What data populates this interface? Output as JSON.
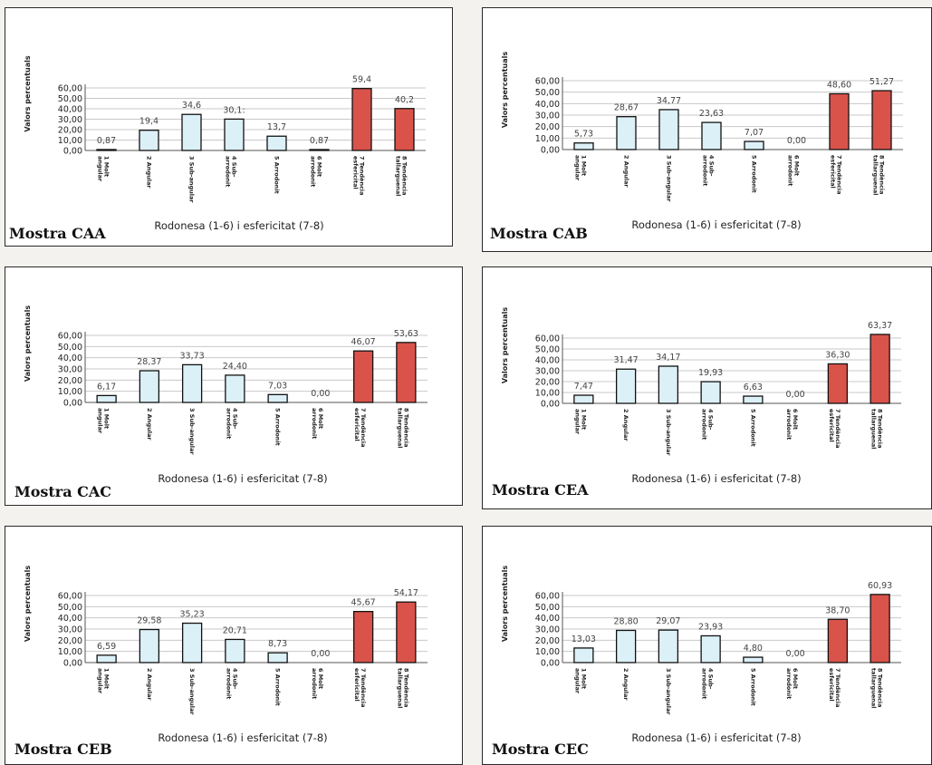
{
  "colors": {
    "roundness_fill": "#dcf0f8",
    "sphericity_fill": "#d9534a",
    "bar_stroke": "#111111",
    "grid": "#c8c8c8",
    "page_bg": "#f4f2ef",
    "panel_bg": "#ffffff"
  },
  "chart_data": [
    {
      "type": "bar",
      "sample": "Mostra CAA",
      "ylabel": "Valors percentuals",
      "xlabel": "Rodonesa (1-6) i esfericitat (7-8)",
      "ylim": [
        0,
        60
      ],
      "yticks": [
        "0,00",
        "10,00",
        "20,00",
        "30,00",
        "40,00",
        "50,00",
        "60,00"
      ],
      "categories": [
        [
          "1 Molt",
          "angular"
        ],
        [
          "2 Angular"
        ],
        [
          "3 Sub-angular"
        ],
        [
          "4 Sub-",
          "arrodonit"
        ],
        [
          "5 Arrodonit"
        ],
        [
          "6 Molt",
          "arrodonit"
        ],
        [
          "7 Tendència",
          "esfericital"
        ],
        [
          "8 Tendència",
          "tallarguenal"
        ]
      ],
      "values": [
        0.87,
        19.4,
        34.6,
        30.1,
        13.7,
        0.87,
        59.4,
        40.2
      ],
      "value_labels": [
        "0,87",
        "19,4",
        "34,6",
        "30,1:",
        "13,7",
        "0,87",
        "59,4",
        "40,2"
      ],
      "grid": true
    },
    {
      "type": "bar",
      "sample": "Mostra CAB",
      "ylabel": "Valors percentuals",
      "xlabel": "Rodonesa (1-6) i esfericitat (7-8)",
      "ylim": [
        0,
        60
      ],
      "yticks": [
        "0,00",
        "10,00",
        "20,00",
        "30,00",
        "40,00",
        "50,00",
        "60,00"
      ],
      "categories": [
        [
          "1 Molt",
          "angular"
        ],
        [
          "2 Angular"
        ],
        [
          "3 Sub-angular"
        ],
        [
          "4 Sub-",
          "arrodonit"
        ],
        [
          "5 Arrodonit"
        ],
        [
          "6 Molt",
          "arrodonit"
        ],
        [
          "7 Tendència",
          "esfericital"
        ],
        [
          "8 Tendència",
          "tallarguenal"
        ]
      ],
      "values": [
        5.73,
        28.67,
        34.77,
        23.63,
        7.07,
        0.0,
        48.6,
        51.27
      ],
      "value_labels": [
        "5,73",
        "28,67",
        "34,77",
        "23,63",
        "7,07",
        "0,00",
        "48,60",
        "51,27"
      ],
      "grid": true
    },
    {
      "type": "bar",
      "sample": "Mostra CAC",
      "ylabel": "Valors percentuals",
      "xlabel": "Rodonesa (1-6) i esfericitat (7-8)",
      "ylim": [
        0,
        60
      ],
      "yticks": [
        "0,00",
        "10,00",
        "20,00",
        "30,00",
        "40,00",
        "50,00",
        "60,00"
      ],
      "categories": [
        [
          "1 Molt",
          "angular"
        ],
        [
          "2 Angular"
        ],
        [
          "3 Sub-angular"
        ],
        [
          "4 Sub-",
          "arrodonit"
        ],
        [
          "5 Arrodonit"
        ],
        [
          "6 Molt",
          "arrodonit"
        ],
        [
          "7 Tendència",
          "esfericital"
        ],
        [
          "8 Tendència",
          "tallarguenal"
        ]
      ],
      "values": [
        6.17,
        28.37,
        33.73,
        24.4,
        7.03,
        0.0,
        46.07,
        53.63
      ],
      "value_labels": [
        "6,17",
        "28,37",
        "33,73",
        "24,40",
        "7,03",
        "0,00",
        "46,07",
        "53,63"
      ],
      "grid": true
    },
    {
      "type": "bar",
      "sample": "Mostra CEA",
      "ylabel": "Valors percentuals",
      "xlabel": "Rodonesa (1-6) i esfericitat (7-8)",
      "ylim": [
        0,
        60
      ],
      "yticks": [
        "0,00",
        "10,00",
        "20,00",
        "30,00",
        "40,00",
        "50,00",
        "60,00"
      ],
      "categories": [
        [
          "1 Molt",
          "angular"
        ],
        [
          "2 Angular"
        ],
        [
          "3 Sub-angular"
        ],
        [
          "4 Sub-",
          "arrodonit"
        ],
        [
          "5 Arrodonit"
        ],
        [
          "6 Molt",
          "arrodonit"
        ],
        [
          "7 Tendència",
          "esfericital"
        ],
        [
          "8 Tendència",
          "tallarguenal"
        ]
      ],
      "values": [
        7.47,
        31.47,
        34.17,
        19.93,
        6.63,
        0.0,
        36.3,
        63.37
      ],
      "value_labels": [
        "7,47",
        "31,47",
        "34,17",
        "19,93",
        "6,63",
        "0,00",
        "36,30",
        "63,37"
      ],
      "grid": true
    },
    {
      "type": "bar",
      "sample": "Mostra CEB",
      "ylabel": "Valors percentuals",
      "xlabel": "Rodonesa (1-6) i esfericitat (7-8)",
      "ylim": [
        0,
        60
      ],
      "yticks": [
        "0,00",
        "10,00",
        "20,00",
        "30,00",
        "40,00",
        "50,00",
        "60,00"
      ],
      "categories": [
        [
          "1 Molt",
          "angular"
        ],
        [
          "2 Angular"
        ],
        [
          "3 Sub-angular"
        ],
        [
          "4 Sub-",
          "arrodonit"
        ],
        [
          "5 Arrodonit"
        ],
        [
          "6 Molt",
          "arrodonit"
        ],
        [
          "7 Tendència",
          "esfericital"
        ],
        [
          "8 Tendència",
          "tallarguenal"
        ]
      ],
      "values": [
        6.59,
        29.58,
        35.23,
        20.71,
        8.73,
        0.0,
        45.67,
        54.17
      ],
      "value_labels": [
        "6,59",
        "29,58",
        "35,23",
        "20,71",
        "8,73",
        "0,00",
        "45,67",
        "54,17"
      ],
      "grid": true
    },
    {
      "type": "bar",
      "sample": "Mostra CEC",
      "ylabel": "Valors percentuals",
      "xlabel": "Rodonesa (1-6) i esfericitat (7-8)",
      "ylim": [
        0,
        60
      ],
      "yticks": [
        "0,00",
        "10,00",
        "20,00",
        "30,00",
        "40,00",
        "50,00",
        "60,00"
      ],
      "categories": [
        [
          "1 Molt",
          "angular"
        ],
        [
          "2 Angular"
        ],
        [
          "3 Sub-angular"
        ],
        [
          "4 Sub-",
          "arrodonit"
        ],
        [
          "5 Arrodonit"
        ],
        [
          "6 Molt",
          "arrodonit"
        ],
        [
          "7 Tendència",
          "esfericital"
        ],
        [
          "8 Tendència",
          "tallarguenal"
        ]
      ],
      "values": [
        13.03,
        28.8,
        29.07,
        23.93,
        4.8,
        0.0,
        38.7,
        60.93
      ],
      "value_labels": [
        "13,03",
        "28,80",
        "29,07",
        "23,93",
        "4,80",
        "0,00",
        "38,70",
        "60,93"
      ],
      "grid": true
    }
  ]
}
